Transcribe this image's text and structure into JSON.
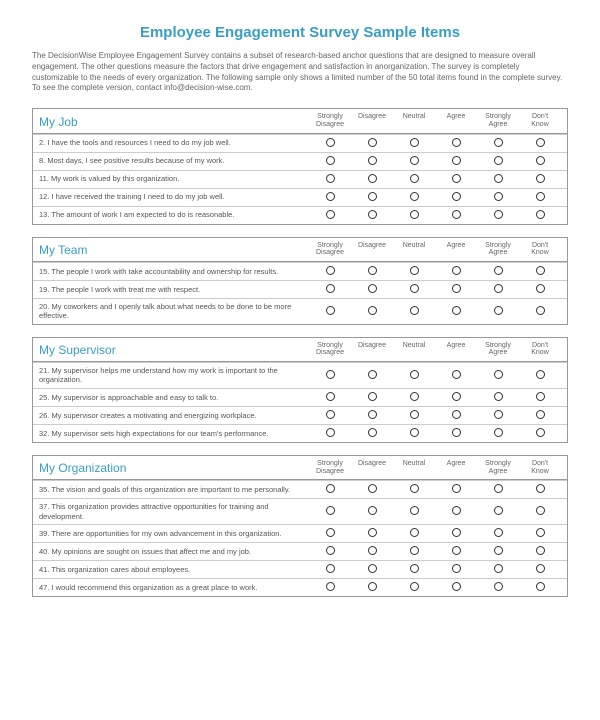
{
  "title": "Employee Engagement Survey Sample Items",
  "intro": "The DecisionWise Employee Engagement Survey contains a subset of research-based anchor questions that are designed to measure overall engagement. The other questions measure the factors that drive engagement and satisfaction in anorganization. The survey is completely customizable to the needs of every organization. The following sample only shows a limited number of the 50 total items found in the complete survey. To see the complete version, contact info@decision-wise.com.",
  "scale_labels": [
    "Strongly\nDisagree",
    "Disagree",
    "Neutral",
    "Agree",
    "Strongly\nAgree",
    "Don't\nKnow"
  ],
  "colors": {
    "accent": "#3a9ec4",
    "text": "#555555",
    "border": "#999999",
    "row_border": "#cccccc",
    "background": "#ffffff"
  },
  "sections": [
    {
      "title": "My Job",
      "questions": [
        "2. I have the tools and resources I need to do my job well.",
        "8. Most days, I see positive results because of my work.",
        "11. My work is valued by this organization.",
        "12. I have received the training I need to do my job well.",
        "13. The amount of work I am expected to do is reasonable."
      ]
    },
    {
      "title": "My Team",
      "questions": [
        "15. The people I work with take accountability and ownership for results.",
        "19. The people I work with treat me with respect.",
        "20. My coworkers and I openly talk about what needs to be done to be more effective."
      ]
    },
    {
      "title": "My Supervisor",
      "questions": [
        "21. My supervisor helps me understand how my work is important to the organization.",
        "25. My supervisor is approachable and easy to talk to.",
        "26. My supervisor creates a motivating and energizing workplace.",
        "32. My supervisor sets high expectations for our team's performance."
      ]
    },
    {
      "title": "My Organization",
      "questions": [
        "35. The vision and goals of this organization are important to me personally.",
        "37. This organization provides attractive opportunities for training and development.",
        "39. There are opportunities for my own advancement in this organization.",
        "40. My opinions are sought on issues that affect me and my job.",
        "41. This organization cares about employees.",
        "47. I would recommend this organization as a great place to work."
      ]
    }
  ]
}
